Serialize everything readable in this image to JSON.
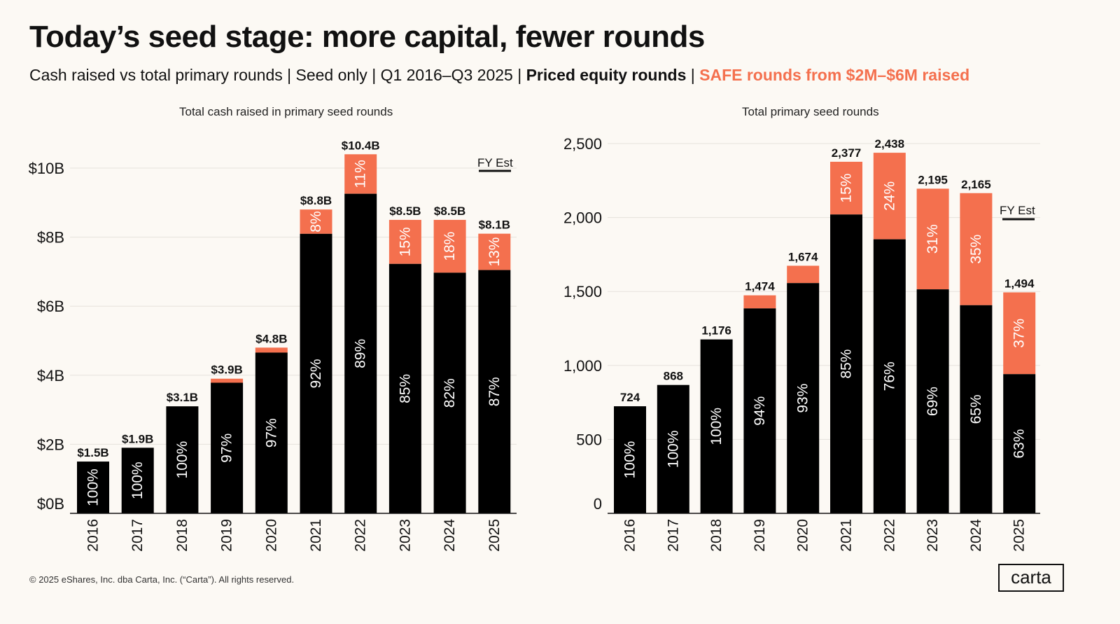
{
  "title": "Today’s seed stage: more capital, fewer rounds",
  "subtitle": {
    "plain": "Cash raised vs total primary rounds | Seed only | Q1 2016–Q3 2025 | ",
    "priced": "Priced equity rounds",
    "sep": " | ",
    "safe": "SAFE rounds from $2M–$6M raised"
  },
  "colors": {
    "priced": "#000000",
    "safe": "#f4704e",
    "background": "#fcf9f4"
  },
  "footer": "© 2025 eShares, Inc. dba Carta, Inc. (“Carta”). All rights reserved.",
  "logo": "carta",
  "chart_data": [
    {
      "type": "bar",
      "stacked": true,
      "title": "Total cash raised in primary seed rounds",
      "categories": [
        "2016",
        "2017",
        "2018",
        "2019",
        "2020",
        "2021",
        "2022",
        "2023",
        "2024",
        "2025"
      ],
      "totals": [
        1.5,
        1.9,
        3.1,
        3.9,
        4.8,
        8.8,
        10.4,
        8.5,
        8.5,
        8.1
      ],
      "total_labels": [
        "$1.5B",
        "$1.9B",
        "$3.1B",
        "$3.9B",
        "$4.8B",
        "$8.8B",
        "$10.4B",
        "$8.5B",
        "$8.5B",
        "$8.1B"
      ],
      "series": [
        {
          "name": "Priced equity rounds",
          "percent": [
            100,
            100,
            100,
            97,
            97,
            92,
            89,
            85,
            82,
            87
          ]
        },
        {
          "name": "SAFE rounds from $2M-$6M raised",
          "percent": [
            0,
            0,
            0,
            3,
            3,
            8,
            11,
            15,
            18,
            13
          ],
          "labeled": [
            false,
            false,
            false,
            false,
            false,
            true,
            true,
            true,
            true,
            true
          ]
        }
      ],
      "ylim": [
        0,
        10.4
      ],
      "yticks": [
        0,
        2,
        4,
        6,
        8,
        10
      ],
      "ytick_labels": [
        "$0B",
        "$2B",
        "$4B",
        "$6B",
        "$8B",
        "$10B"
      ],
      "annotation": "FY Est",
      "grid": true
    },
    {
      "type": "bar",
      "stacked": true,
      "title": "Total primary seed rounds",
      "categories": [
        "2016",
        "2017",
        "2018",
        "2019",
        "2020",
        "2021",
        "2022",
        "2023",
        "2024",
        "2025"
      ],
      "totals": [
        724,
        868,
        1176,
        1474,
        1674,
        2377,
        2438,
        2195,
        2165,
        1494
      ],
      "total_labels": [
        "724",
        "868",
        "1,176",
        "1,474",
        "1,674",
        "2,377",
        "2,438",
        "2,195",
        "2,165",
        "1,494"
      ],
      "series": [
        {
          "name": "Priced equity rounds",
          "percent": [
            100,
            100,
            100,
            94,
            93,
            85,
            76,
            69,
            65,
            63
          ]
        },
        {
          "name": "SAFE rounds from $2M-$6M raised",
          "percent": [
            0,
            0,
            0,
            6,
            7,
            15,
            24,
            31,
            35,
            37
          ],
          "labeled": [
            false,
            false,
            false,
            false,
            false,
            true,
            true,
            true,
            true,
            true
          ]
        }
      ],
      "ylim": [
        0,
        2500
      ],
      "yticks": [
        0,
        500,
        1000,
        1500,
        2000,
        2500
      ],
      "ytick_labels": [
        "0",
        "500",
        "1,000",
        "1,500",
        "2,000",
        "2,500"
      ],
      "annotation": "FY Est",
      "grid": true
    }
  ]
}
